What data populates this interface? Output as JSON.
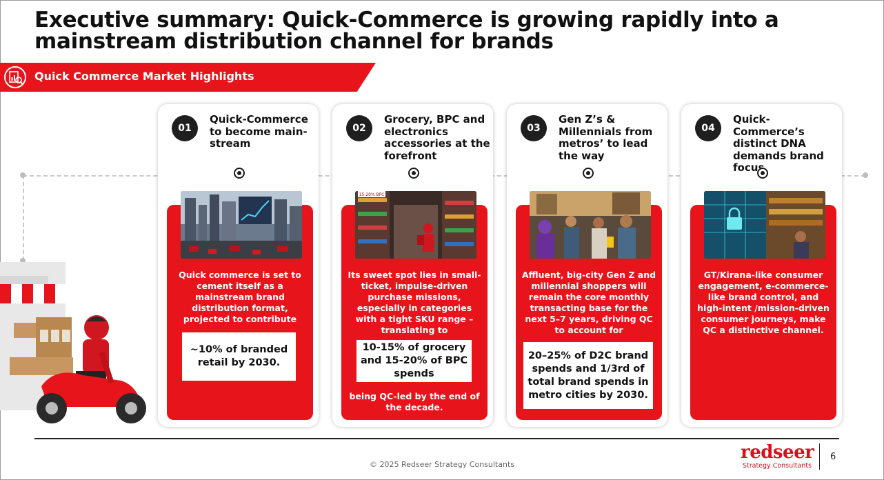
{
  "title": "Executive summary: Quick-Commerce is growing rapidly into a mainstream distribution channel for brands",
  "banner": {
    "label": "Quick Commerce Market Highlights",
    "icon": "chart-doc-icon"
  },
  "colors": {
    "accent": "#e8141b",
    "dark": "#1f1f1f"
  },
  "cards": [
    {
      "num": "01",
      "heading": "Quick-Commerce to become main-stream",
      "photo": "city-skyline-growth-chart-photo",
      "text_top": "Quick commerce is set to cement itself as a mainstream brand distribution format, projected to contribute",
      "highlight": "~10% of branded retail by 2030.",
      "text_bottom": ""
    },
    {
      "num": "02",
      "heading": "Grocery, BPC and electronics accessories at the forefront",
      "photo": "store-aisle-delivery-photo",
      "photo_tag": "15-20% BPC",
      "text_top": "Its sweet spot lies in small-ticket, impulse-driven purchase missions, especially in categories with a tight SKU range – translating to",
      "highlight": "10-15% of grocery and 15-20% of BPC spends",
      "text_bottom": "being QC-led by the end of the decade."
    },
    {
      "num": "03",
      "heading": "Gen Z’s & Millennials from metros’ to lead the way",
      "photo": "young-shoppers-street-photo",
      "text_top": "Affluent, big-city Gen Z and millennial shoppers will remain the core monthly transacting base for the next 5–7 years, driving QC to account for",
      "highlight": "20–25% of D2C brand spends and 1/3rd of total brand spends in metro cities by 2030.",
      "text_bottom": ""
    },
    {
      "num": "04",
      "heading": "Quick- Commerce’s distinct DNA demands brand focus",
      "photo": "digital-lock-kirana-photo",
      "text_top": "GT/Kirana-like consumer engagement, e-commerce-like brand control, and high-intent /mission-driven consumer journeys, make QC a distinctive channel.",
      "highlight": "",
      "text_bottom": ""
    }
  ],
  "footer": {
    "copyright": "© 2025 Redseer Strategy Consultants",
    "logo_name": "redseer",
    "logo_sub": "Strategy Consultants",
    "page_number": "6"
  }
}
